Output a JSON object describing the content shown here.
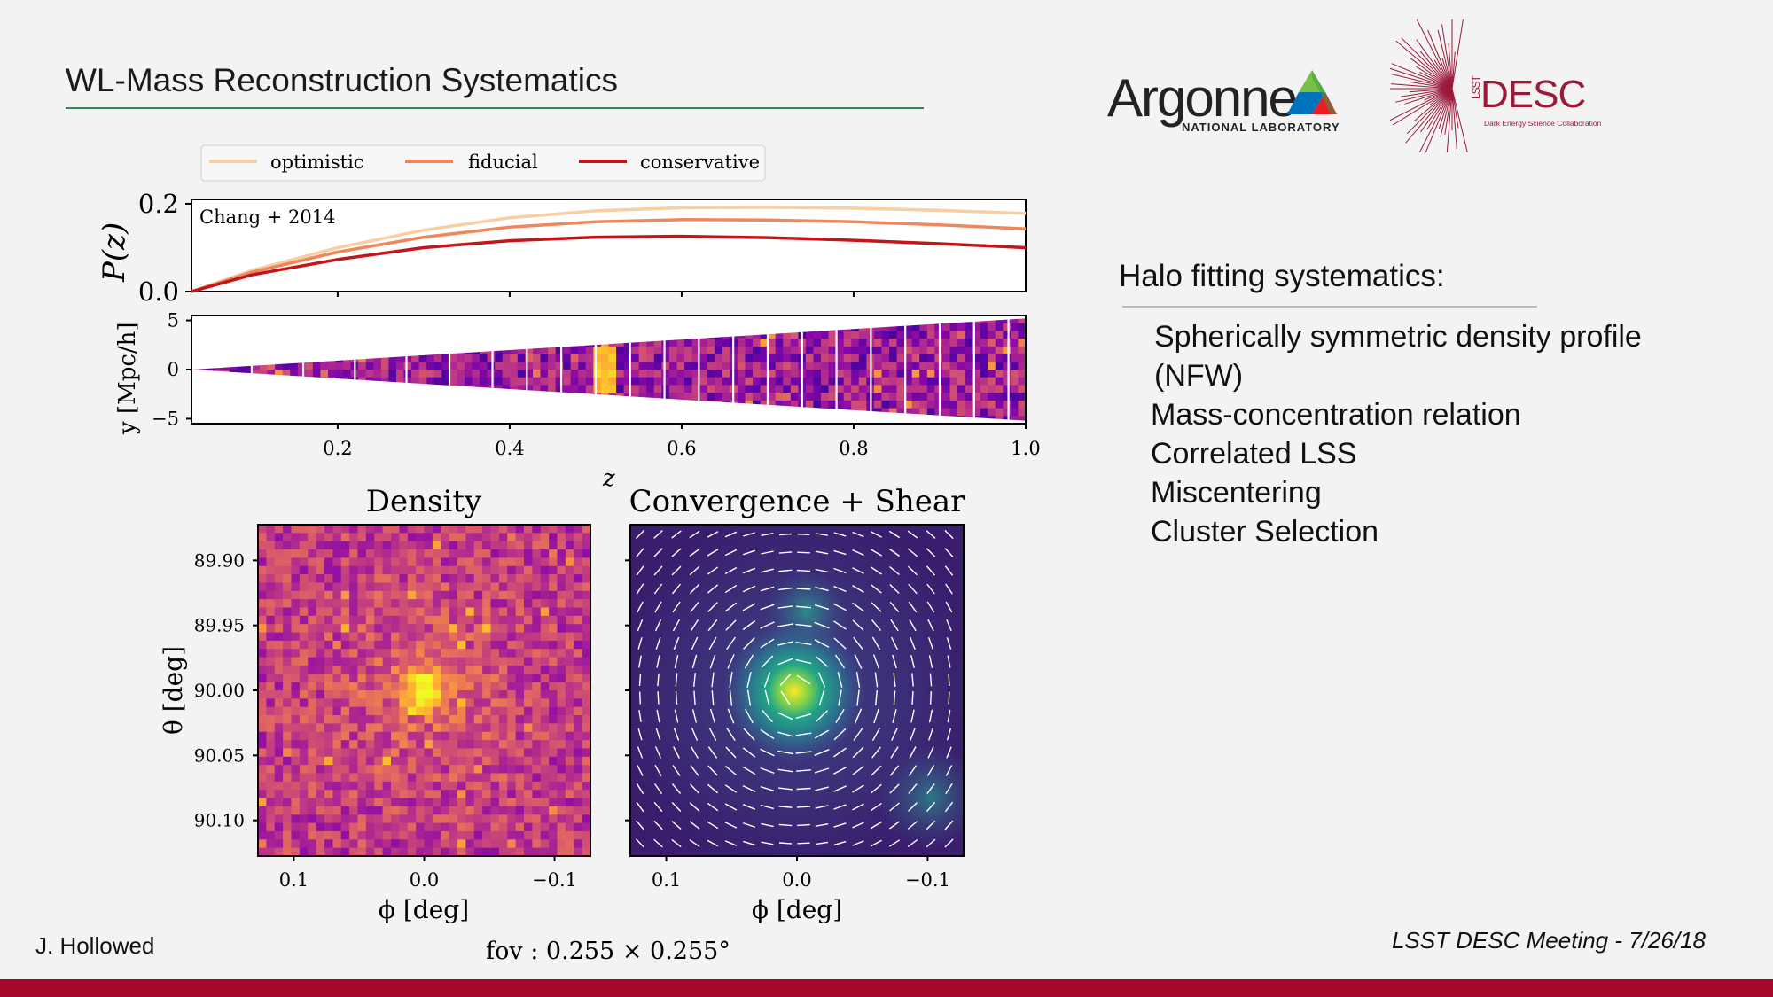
{
  "slide": {
    "title": "WL-Mass Reconstruction Systematics",
    "author": "J. Hollowed",
    "meeting": "LSST DESC Meeting - 7/26/18",
    "footer_color": "#a5082d",
    "rule_color": "#2e8b57"
  },
  "logos": {
    "argonne": {
      "name": "Argonne",
      "subtitle": "NATIONAL LABORATORY"
    },
    "desc": {
      "prefix": "LSST",
      "name": "DESC",
      "subtitle": "Dark Energy Science Collaboration"
    }
  },
  "halo": {
    "heading": "Halo fitting systematics:",
    "items": [
      "Spherically symmetric density profile (NFW)",
      "Mass-concentration relation",
      "Correlated LSS",
      "Miscentering",
      "Cluster Selection"
    ]
  },
  "chart_data": [
    {
      "type": "line",
      "id": "pz",
      "ylabel": "P(z)",
      "annotation": "Chang + 2014",
      "xlim": [
        0.03,
        1.0
      ],
      "ylim": [
        0,
        0.21
      ],
      "yticks": [
        {
          "value": 0,
          "label": "0.0"
        },
        {
          "value": 0.2,
          "label": "0.2"
        }
      ],
      "legend": {
        "position": "top",
        "entries": [
          "optimistic",
          "fiducial",
          "conservative"
        ]
      },
      "series": [
        {
          "name": "optimistic",
          "color": "#f7cfa3",
          "x": [
            0.03,
            0.1,
            0.2,
            0.3,
            0.4,
            0.5,
            0.6,
            0.7,
            0.8,
            0.9,
            1.0
          ],
          "y": [
            0.0,
            0.048,
            0.1,
            0.14,
            0.168,
            0.184,
            0.191,
            0.192,
            0.19,
            0.185,
            0.178
          ]
        },
        {
          "name": "fiducial",
          "color": "#f0875c",
          "x": [
            0.03,
            0.1,
            0.2,
            0.3,
            0.4,
            0.5,
            0.6,
            0.7,
            0.8,
            0.9,
            1.0
          ],
          "y": [
            0.0,
            0.044,
            0.09,
            0.124,
            0.147,
            0.159,
            0.164,
            0.163,
            0.159,
            0.152,
            0.143
          ]
        },
        {
          "name": "conservative",
          "color": "#c2161b",
          "x": [
            0.03,
            0.1,
            0.2,
            0.3,
            0.4,
            0.5,
            0.6,
            0.7,
            0.8,
            0.9,
            1.0
          ],
          "y": [
            0.0,
            0.038,
            0.073,
            0.1,
            0.116,
            0.124,
            0.126,
            0.123,
            0.117,
            0.109,
            0.1
          ]
        }
      ]
    },
    {
      "type": "heatmap",
      "id": "lightcone",
      "ylabel": "y [Mpc/h]",
      "xlabel": "z",
      "xlim": [
        0.03,
        1.0
      ],
      "ylim": [
        -5.5,
        5.5
      ],
      "xticks": [
        {
          "value": 0.2,
          "label": "0.2"
        },
        {
          "value": 0.4,
          "label": "0.4"
        },
        {
          "value": 0.6,
          "label": "0.6"
        },
        {
          "value": 0.8,
          "label": "0.8"
        },
        {
          "value": 1.0,
          "label": "1.0"
        }
      ],
      "yticks": [
        {
          "value": 5,
          "label": "5"
        },
        {
          "value": 0,
          "label": "0"
        },
        {
          "value": -5,
          "label": "−5"
        }
      ],
      "cone_halfwidth_at_zmax": 5.2,
      "shell_boundaries": [
        0.1,
        0.16,
        0.22,
        0.28,
        0.33,
        0.38,
        0.42,
        0.46,
        0.5,
        0.54,
        0.58,
        0.62,
        0.66,
        0.7,
        0.74,
        0.78,
        0.82,
        0.86,
        0.9,
        0.94,
        0.98
      ]
    },
    {
      "type": "heatmap",
      "id": "density",
      "title": "Density",
      "xlabel": "ϕ [deg]",
      "ylabel": "θ [deg]",
      "xlim": [
        0.1275,
        -0.1275
      ],
      "ylim": [
        89.8725,
        90.1275
      ],
      "xticks": [
        {
          "value": 0.1,
          "label": "0.1"
        },
        {
          "value": 0.0,
          "label": "0.0"
        },
        {
          "value": -0.1,
          "label": "−0.1"
        }
      ],
      "yticks": [
        {
          "value": 89.9,
          "label": "89.90"
        },
        {
          "value": 89.95,
          "label": "89.95"
        },
        {
          "value": 90.0,
          "label": "90.00"
        },
        {
          "value": 90.05,
          "label": "90.05"
        },
        {
          "value": 90.1,
          "label": "90.10"
        }
      ],
      "peak": {
        "phi": 0.0,
        "theta": 90.0
      }
    },
    {
      "type": "heatmap",
      "id": "convergence",
      "title": "Convergence + Shear",
      "xlabel": "ϕ [deg]",
      "xlim": [
        0.1275,
        -0.1275
      ],
      "ylim": [
        89.8725,
        90.1275
      ],
      "xticks": [
        {
          "value": 0.1,
          "label": "0.1"
        },
        {
          "value": 0.0,
          "label": "0.0"
        },
        {
          "value": -0.1,
          "label": "−0.1"
        }
      ],
      "peak": {
        "phi": 0.0,
        "theta": 90.0
      },
      "secondary_peaks": [
        {
          "phi": -0.005,
          "theta": 89.94
        },
        {
          "phi": -0.095,
          "theta": 90.085
        }
      ]
    }
  ],
  "fov_label": "fov : 0.255 × 0.255°"
}
